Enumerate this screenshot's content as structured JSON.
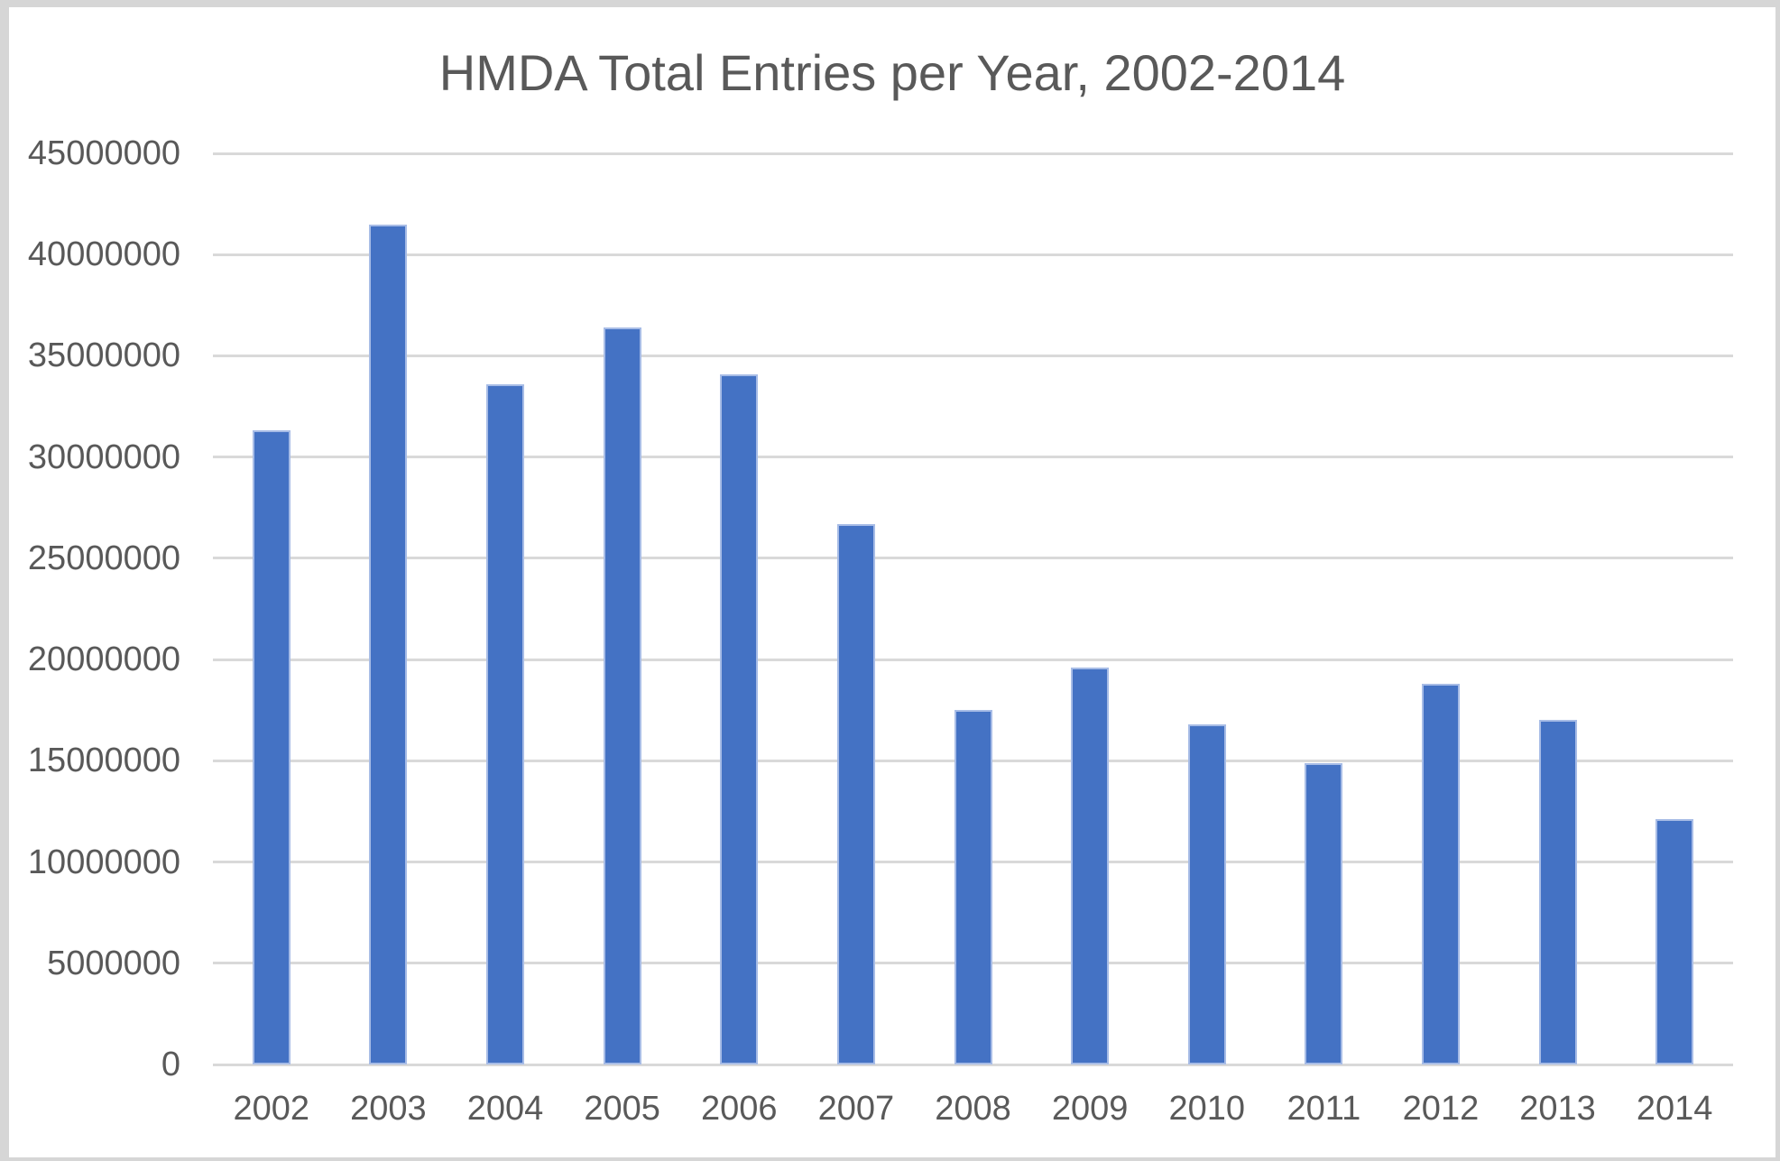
{
  "chart_data": {
    "type": "bar",
    "title": "HMDA Total Entries per Year, 2002-2014",
    "categories": [
      "2002",
      "2003",
      "2004",
      "2005",
      "2006",
      "2007",
      "2008",
      "2009",
      "2010",
      "2011",
      "2012",
      "2013",
      "2014"
    ],
    "values": [
      31300000,
      41500000,
      33600000,
      36400000,
      34100000,
      26700000,
      17500000,
      19600000,
      16800000,
      14900000,
      18800000,
      17000000,
      12100000
    ],
    "xlabel": "",
    "ylabel": "",
    "ylim": [
      0,
      45000000
    ],
    "yticks": [
      0,
      5000000,
      10000000,
      15000000,
      20000000,
      25000000,
      30000000,
      35000000,
      40000000,
      45000000
    ],
    "grid": true,
    "legend": false,
    "colors": {
      "bar_fill": "#4472C4",
      "bar_edge": "#A7BCE6",
      "gridline": "#D9D9D9",
      "text": "#595959",
      "frame_border": "#D6D6D6",
      "background": "#FFFFFF"
    }
  }
}
